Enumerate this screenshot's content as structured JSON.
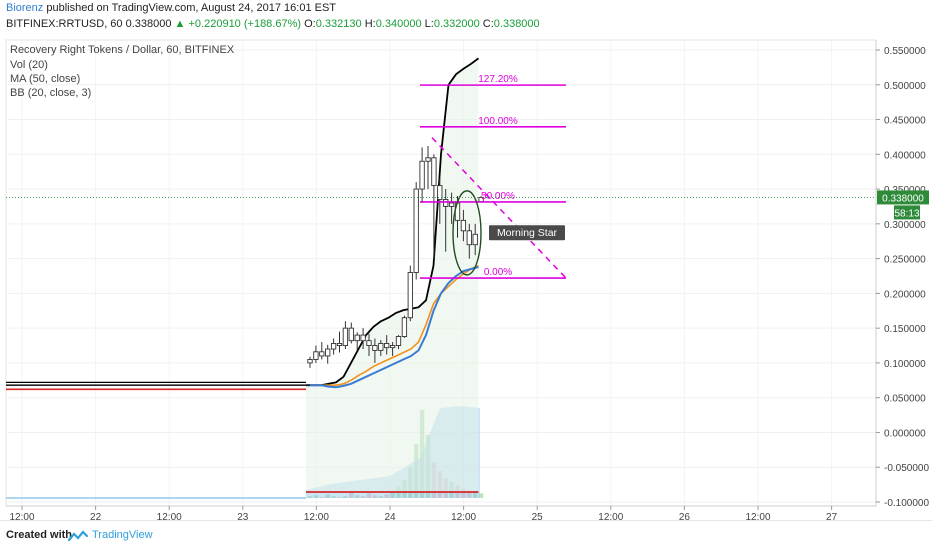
{
  "header": {
    "author": "Biorenz",
    "published": "published on TradingView.com, August 24, 2017 16:01 EST",
    "symbol_line": "BITFINEX:RRTUSD, 60  0.338000",
    "change_arrow": "▲",
    "change": "+0.220910 (+188.67%)",
    "ohlc": {
      "o_label": "O:",
      "o": "0.332130",
      "h_label": "H:",
      "h": "0.340000",
      "l_label": "L:",
      "l": "0.332000",
      "c_label": "C:",
      "c": "0.338000"
    }
  },
  "footer": {
    "created_with": "Created with",
    "brand": "TradingView"
  },
  "colors": {
    "up": "#1a9e3a",
    "down": "#c0392b",
    "bb_band": "#000000",
    "bb_basis": "#d62728",
    "ma": "#3a7bd5",
    "ema": "#f0931b",
    "fib": "#e000e0",
    "vol_up": "#a6d8a8",
    "vol_down": "#e8b8b8",
    "vol_area": "#8cc4ec",
    "price_tag": "#2e8b3a",
    "timer_tag": "#2e8b3a"
  },
  "chart_data": {
    "type": "candlestick",
    "title": "Recovery Right Tokens / Dollar, 60, BITFINEX",
    "indicators": [
      "Vol (20)",
      "MA (50, close)",
      "BB (20, close, 3)"
    ],
    "y_axis": {
      "ticks": [
        "0.550000",
        "0.500000",
        "0.450000",
        "0.400000",
        "0.350000",
        "0.300000",
        "0.250000",
        "0.200000",
        "0.150000",
        "0.100000",
        "0.050000",
        "0.000000",
        "-0.050000",
        "-0.100000"
      ],
      "ylim": [
        -0.1,
        0.55
      ]
    },
    "x_axis": {
      "ticks": [
        "12:00",
        "22",
        "12:00",
        "23",
        "12:00",
        "24",
        "12:00",
        "25",
        "12:00",
        "26",
        "12:00",
        "27"
      ]
    },
    "last_price": "0.338000",
    "countdown": "58:13",
    "annotation": "Morning Star",
    "fib_levels": [
      {
        "label": "127.20%",
        "price": 0.4995
      },
      {
        "label": "100.00%",
        "price": 0.4395
      },
      {
        "label": "50.00%",
        "price": 0.3315
      },
      {
        "label": "0.00%",
        "price": 0.222
      }
    ],
    "candles": [
      [
        0.1,
        0.109,
        0.093,
        0.105
      ],
      [
        0.105,
        0.125,
        0.1,
        0.116
      ],
      [
        0.116,
        0.13,
        0.105,
        0.11
      ],
      [
        0.11,
        0.126,
        0.099,
        0.12
      ],
      [
        0.12,
        0.135,
        0.112,
        0.128
      ],
      [
        0.128,
        0.145,
        0.115,
        0.125
      ],
      [
        0.125,
        0.16,
        0.12,
        0.15
      ],
      [
        0.15,
        0.158,
        0.128,
        0.132
      ],
      [
        0.132,
        0.144,
        0.118,
        0.14
      ],
      [
        0.14,
        0.15,
        0.12,
        0.132
      ],
      [
        0.132,
        0.142,
        0.11,
        0.125
      ],
      [
        0.125,
        0.135,
        0.1,
        0.118
      ],
      [
        0.118,
        0.133,
        0.11,
        0.128
      ],
      [
        0.128,
        0.14,
        0.112,
        0.122
      ],
      [
        0.122,
        0.13,
        0.11,
        0.125
      ],
      [
        0.125,
        0.14,
        0.12,
        0.138
      ],
      [
        0.138,
        0.168,
        0.136,
        0.165
      ],
      [
        0.165,
        0.24,
        0.16,
        0.23
      ],
      [
        0.23,
        0.36,
        0.22,
        0.35
      ],
      [
        0.35,
        0.41,
        0.33,
        0.39
      ],
      [
        0.39,
        0.412,
        0.35,
        0.395
      ],
      [
        0.395,
        0.4,
        0.25,
        0.355
      ],
      [
        0.355,
        0.365,
        0.3,
        0.335
      ],
      [
        0.335,
        0.35,
        0.26,
        0.325
      ],
      [
        0.325,
        0.345,
        0.3,
        0.33
      ],
      [
        0.33,
        0.34,
        0.28,
        0.305
      ],
      [
        0.305,
        0.32,
        0.275,
        0.29
      ],
      [
        0.29,
        0.3,
        0.25,
        0.27
      ],
      [
        0.27,
        0.3,
        0.255,
        0.285
      ],
      [
        0.332,
        0.34,
        0.332,
        0.338
      ]
    ],
    "series": [
      {
        "name": "BB (20, close, 3) upper",
        "values": [
          0.068,
          0.068,
          0.068,
          0.07,
          0.072,
          0.08,
          0.1,
          0.12,
          0.14,
          0.152,
          0.16,
          0.165,
          0.172,
          0.176,
          0.178,
          0.18,
          0.19,
          0.24,
          0.4,
          0.5,
          0.515,
          0.523,
          0.53,
          0.538
        ]
      },
      {
        "name": "BB (20, close, 3) basis",
        "values": [
          0.068,
          0.068,
          0.068,
          0.066,
          0.065,
          0.067,
          0.07,
          0.075,
          0.08,
          0.085,
          0.09,
          0.095,
          0.1,
          0.105,
          0.11,
          0.118,
          0.14,
          0.175,
          0.2,
          0.215,
          0.225,
          0.232,
          0.235,
          0.238
        ]
      },
      {
        "name": "MA (50, close)",
        "values": [
          0.068,
          0.068,
          0.068,
          0.068,
          0.068,
          0.07,
          0.075,
          0.082,
          0.088,
          0.095,
          0.1,
          0.105,
          0.11,
          0.115,
          0.12,
          0.13,
          0.155,
          0.185,
          0.2,
          0.21,
          0.22,
          0.228,
          0.235,
          0.24
        ]
      }
    ]
  }
}
